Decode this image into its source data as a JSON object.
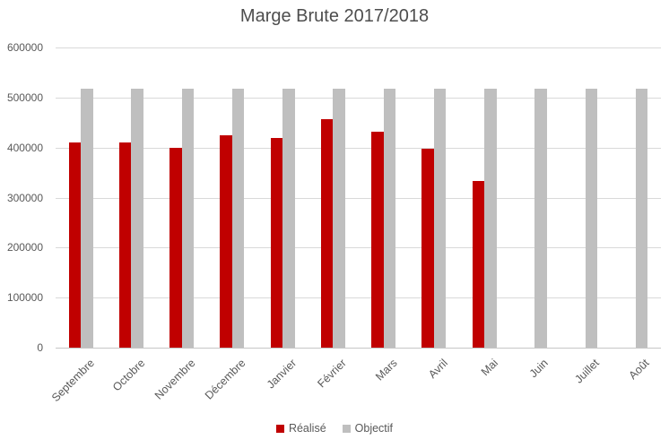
{
  "chart_data": {
    "type": "bar",
    "title": "Marge Brute 2017/2018",
    "categories": [
      "Septembre",
      "Octobre",
      "Novembre",
      "Décembre",
      "Janvier",
      "Février",
      "Mars",
      "Avril",
      "Mai",
      "Juin",
      "Juillet",
      "Août"
    ],
    "series": [
      {
        "key": "realise",
        "name": "Réalisé",
        "color": "#c00000",
        "values": [
          410000,
          410000,
          400000,
          425000,
          420000,
          457000,
          431000,
          398000,
          333000,
          null,
          null,
          null
        ]
      },
      {
        "key": "objectif",
        "name": "Objectif",
        "color": "#bfbfbf",
        "values": [
          517000,
          517000,
          517000,
          517000,
          517000,
          517000,
          517000,
          517000,
          517000,
          517000,
          517000,
          517000
        ]
      }
    ],
    "xlabel": "",
    "ylabel": "",
    "ylim": [
      0,
      600000
    ],
    "ytick_step": 100000,
    "ytick_labels": [
      "0",
      "100000",
      "200000",
      "300000",
      "400000",
      "500000",
      "600000"
    ],
    "grid": "horizontal-only",
    "gridline_color": "#d9d9d9",
    "legend_position": "bottom-center",
    "background": "#ffffff",
    "text_color": "#595959",
    "title_color": "#4d4d4d"
  }
}
